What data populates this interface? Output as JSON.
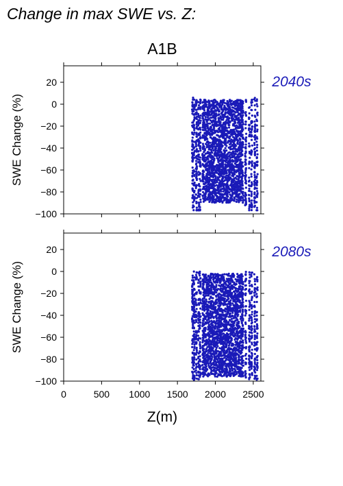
{
  "figure": {
    "title": "Change in max SWE vs. Z:",
    "scenario": "A1B",
    "xlabel": "Z(m)"
  },
  "colors": {
    "points": "#1a1ab8",
    "panel_label": "#1a1ab8",
    "axes": "#000000"
  },
  "chart_data": [
    {
      "type": "scatter",
      "panel_label": "2040s",
      "ylabel": "SWE Change (%)",
      "xlabel": "",
      "xlim": [
        0,
        2600
      ],
      "ylim": [
        -100,
        35
      ],
      "xticks": [
        0,
        500,
        1000,
        1500,
        2000,
        2500
      ],
      "yticks": [
        -100,
        -80,
        -60,
        -40,
        -20,
        0,
        20
      ],
      "x_tick_labels_shown": false,
      "grid": false,
      "point_cloud": {
        "description": "dense cloud of points",
        "x_range": [
          1680,
          2560
        ],
        "y_range": [
          -97,
          6
        ],
        "dense_core": {
          "x": [
            1830,
            2370
          ],
          "y": [
            -90,
            4
          ]
        }
      }
    },
    {
      "type": "scatter",
      "panel_label": "2080s",
      "ylabel": "SWE Change (%)",
      "xlabel": "Z(m)",
      "xlim": [
        0,
        2600
      ],
      "ylim": [
        -100,
        35
      ],
      "xticks": [
        0,
        500,
        1000,
        1500,
        2000,
        2500
      ],
      "yticks": [
        -100,
        -80,
        -60,
        -40,
        -20,
        0,
        20
      ],
      "x_tick_labels_shown": true,
      "grid": false,
      "point_cloud": {
        "description": "dense cloud of points",
        "x_range": [
          1680,
          2560
        ],
        "y_range": [
          -99,
          0
        ],
        "dense_core": {
          "x": [
            1830,
            2370
          ],
          "y": [
            -96,
            -2
          ]
        }
      }
    }
  ]
}
